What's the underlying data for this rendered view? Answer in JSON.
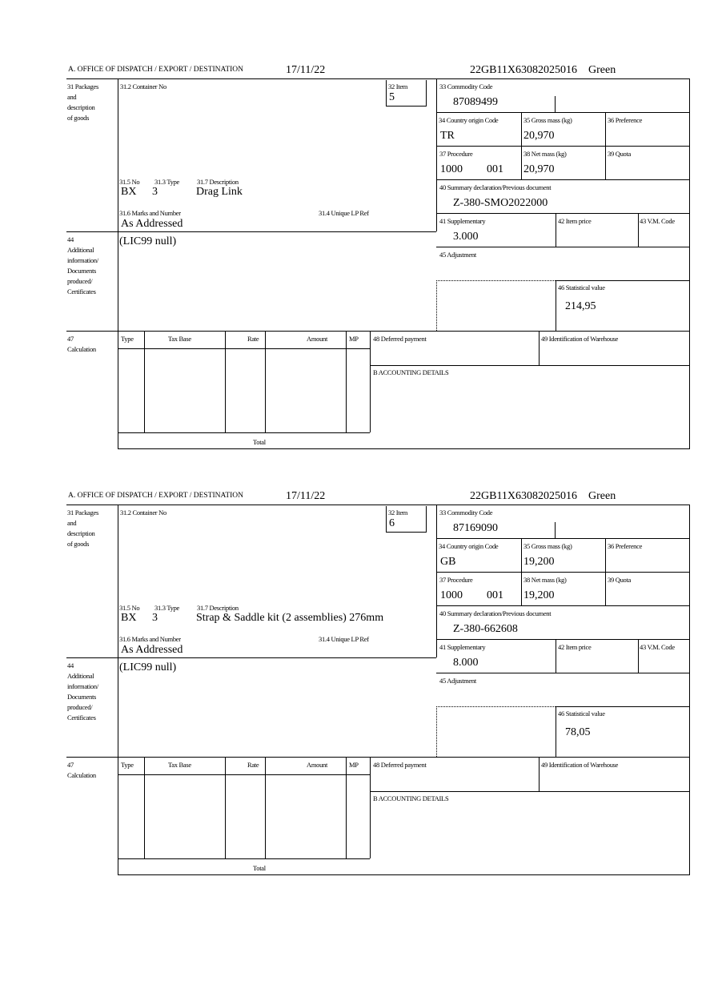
{
  "labels": {
    "office": "A. OFFICE OF DISPATCH / EXPORT / DESTINATION",
    "packages": [
      "31 Packages",
      "and",
      "description",
      "of goods"
    ],
    "container": "31.2 Container No",
    "item": "32 Item",
    "commodity": "33 Commodity Code",
    "country": "34 Country origin Code",
    "gross": "35 Gross mass (kg)",
    "preference": "36 Preference",
    "procedure": "37 Procedure",
    "net": "38 Net mass (kg)",
    "quota": "39 Quota",
    "summary": "40 Summary declaration/Previous document",
    "supplementary": "41 Supplementary",
    "item_price": "42 Item price",
    "vm_code": "43 V.M. Code",
    "adjustment": "45 Adjustment",
    "statistical": "46 Statistical value",
    "no": "31.5 No",
    "type": "31.3 Type",
    "description": "31.7 Description",
    "marks": "31.6 Marks and Number",
    "unique_ref": "31.4 Unique LP Ref",
    "additional": [
      "44",
      "Additional",
      "information/",
      "Documents",
      "produced/",
      "Certificates"
    ],
    "calculation": [
      "47",
      "Calculation"
    ],
    "calc_cols": [
      "Type",
      "Tax Base",
      "Rate",
      "Amount",
      "MP"
    ],
    "total": "Total",
    "deferred": "48 Deferred payment",
    "warehouse": "49 Identification of Warehouse",
    "accounting": "B ACCOUNTING DETAILS"
  },
  "forms": [
    {
      "date": "17/11/22",
      "reference": "22GB11X63082025016",
      "route": "Green",
      "item": "5",
      "commodity_code": "87089499",
      "country": "TR",
      "gross_mass": "20,970",
      "procedure": "1000",
      "procedure_code": "001",
      "net_mass": "20,970",
      "summary_doc": "Z-380-SMO2022000",
      "package_kind": "BX",
      "package_count": "3",
      "description": "Drag Link",
      "marks": "As Addressed",
      "additional_info": "(LIC99 null)",
      "supplementary": "3.000",
      "statistical_value": "214,95"
    },
    {
      "date": "17/11/22",
      "reference": "22GB11X63082025016",
      "route": "Green",
      "item": "6",
      "commodity_code": "87169090",
      "country": "GB",
      "gross_mass": "19,200",
      "procedure": "1000",
      "procedure_code": "001",
      "net_mass": "19,200",
      "summary_doc": "Z-380-662608",
      "package_kind": "BX",
      "package_count": "3",
      "description": "Strap & Saddle kit (2 assemblies) 276mm",
      "marks": "As Addressed",
      "additional_info": "(LIC99 null)",
      "supplementary": "8.000",
      "statistical_value": "78,05"
    }
  ]
}
